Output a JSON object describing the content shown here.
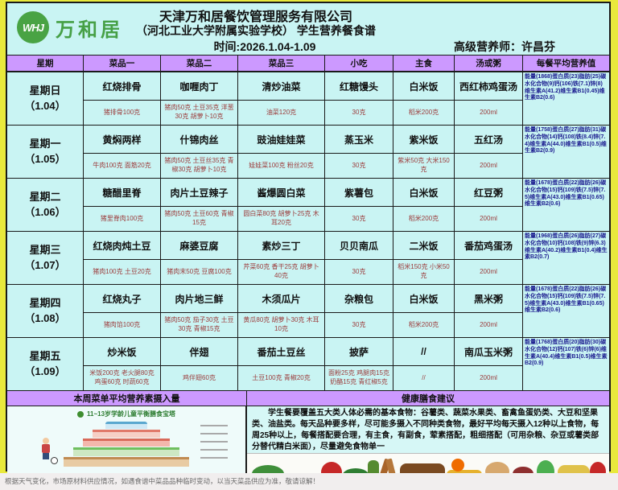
{
  "header": {
    "logo_badge": "WHJ",
    "logo_text": "万和居",
    "company": "天津万和居餐饮管理服务有限公司",
    "subtitle": "（河北工业大学附属实验学校）  学生营养餐食谱",
    "time_label": "时间:2026.1.04-1.09",
    "nutritionist": "高级营养师：许昌芬"
  },
  "table": {
    "columns": [
      "星期",
      "菜品一",
      "菜品二",
      "菜品三",
      "小吃",
      "主食",
      "汤或粥",
      "每餐平均营养值"
    ],
    "rows": [
      {
        "day": "星期日",
        "date": "（1.04）",
        "items": [
          {
            "name": "红烧排骨",
            "detail": "猪排骨100克"
          },
          {
            "name": "咖喱肉丁",
            "detail": "猪肉50克 土豆35克 洋葱30克 胡萝卜10克"
          },
          {
            "name": "清炒油菜",
            "detail": "油菜120克"
          },
          {
            "name": "红糖馒头",
            "detail": "30克"
          },
          {
            "name": "白米饭",
            "detail": "稻米200克"
          },
          {
            "name": "西红柿鸡蛋汤",
            "detail": "200ml"
          }
        ],
        "nutrition": "能量(1868)蛋白质(23)脂肪(25)碳水化合物(9)钙(106)铁(7.1)锌(8)维生素A(41.2)维生素B1(0.45)维生素B2(0.6)"
      },
      {
        "day": "星期一",
        "date": "（1.05）",
        "items": [
          {
            "name": "黄焖两样",
            "detail": "牛肉100克 面筋20克"
          },
          {
            "name": "什锦肉丝",
            "detail": "猪肉50克 土豆丝35克 青椒30克 胡萝卜10克"
          },
          {
            "name": "豉油娃娃菜",
            "detail": "娃娃菜100克 粉丝20克"
          },
          {
            "name": "蒸玉米",
            "detail": "30克"
          },
          {
            "name": "紫米饭",
            "detail": "紫米50克 大米150克"
          },
          {
            "name": "五红汤",
            "detail": "200ml"
          }
        ],
        "nutrition": "能量(1758)蛋白质(27)脂肪(31)碳水化合物(14)钙(108)铁(8.4)锌(7.4)维生素A(44.0)维生素B1(0.5)维生素B2(0.9)"
      },
      {
        "day": "星期二",
        "date": "（1.06）",
        "items": [
          {
            "name": "糖醋里脊",
            "detail": "猪里脊肉100克"
          },
          {
            "name": "肉片土豆辣子",
            "detail": "猪肉50克 土豆60克 青椒15克"
          },
          {
            "name": "酱爆圆白菜",
            "detail": "圆白菜80克 胡萝卜25克 木耳20克"
          },
          {
            "name": "紫薯包",
            "detail": "30克"
          },
          {
            "name": "白米饭",
            "detail": "稻米200克"
          },
          {
            "name": "红豆粥",
            "detail": "200ml"
          }
        ],
        "nutrition": "能量(1678)蛋白质(22)脂肪(26)碳水化合物(15)钙(109)铁(7.5)锌(7.5)维生素A(43.0)维生素B1(0.65)维生素B2(0.6)"
      },
      {
        "day": "星期三",
        "date": "（1.07）",
        "items": [
          {
            "name": "红烧肉炖土豆",
            "detail": "猪肉100克 土豆20克"
          },
          {
            "name": "麻婆豆腐",
            "detail": "猪肉末50克 豆腐100克"
          },
          {
            "name": "素炒三丁",
            "detail": "芹菜60克 香干25克 胡萝卜40克"
          },
          {
            "name": "贝贝南瓜",
            "detail": "30克"
          },
          {
            "name": "二米饭",
            "detail": "稻米150克 小米50克"
          },
          {
            "name": "番茄鸡蛋汤",
            "detail": "200ml"
          }
        ],
        "nutrition": "能量(1968)蛋白质(26)脂肪(27)碳水化合物(10)钙(108)铁(9)锌(6.3)维生素A(40.2)维生素B1(0.4)维生素B2(0.7)"
      },
      {
        "day": "星期四",
        "date": "（1.08）",
        "items": [
          {
            "name": "红烧丸子",
            "detail": "猪肉馅100克"
          },
          {
            "name": "肉片地三鲜",
            "detail": "猪肉50克 茄子30克 土豆30克 青椒15克"
          },
          {
            "name": "木须瓜片",
            "detail": "黄瓜80克 胡萝卜30克 木耳10克"
          },
          {
            "name": "杂粮包",
            "detail": "30克"
          },
          {
            "name": "白米饭",
            "detail": "稻米200克"
          },
          {
            "name": "黑米粥",
            "detail": "200ml"
          }
        ],
        "nutrition": "能量(1678)蛋白质(22)脂肪(26)碳水化合物(15)钙(109)铁(7.5)锌(7.5)维生素A(43.0)维生素B1(0.65)维生素B2(0.6)"
      },
      {
        "day": "星期五",
        "date": "（1.09）",
        "items": [
          {
            "name": "炒米饭",
            "detail": "米饭200克 老火腿80克 鸡蛋60克 时蔬60克"
          },
          {
            "name": "伴翅",
            "detail": "鸡伴翅60克"
          },
          {
            "name": "番茄土豆丝",
            "detail": "土豆100克 青椒20克"
          },
          {
            "name": "披萨",
            "detail": "面粉25克 鸡腿肉15克 奶酪15克 青红椒5克"
          },
          {
            "name": "//",
            "detail": "//"
          },
          {
            "name": "南瓜玉米粥",
            "detail": "200ml"
          }
        ],
        "nutrition": "能量(1768)蛋白质(20)脂肪(30)碳水化合物(12)钙(107)铁(6)锌(6)维生素A(40.4)维生素B1(0.5)维生素B2(0.9)"
      }
    ]
  },
  "bottom": {
    "left_header": "本周菜单平均营养素摄入量",
    "right_header": "健康膳食建议",
    "pagoda_title": "11~13岁学龄儿童平衡膳食宝塔",
    "advice": "学生餐要覆盖五大类人体必需的基本食物：谷薯类、蔬菜水果类、畜禽鱼蛋奶类、大豆和坚果类、油盐类。每天品种要多样，尽可能多摄入不同种类食物，最好平均每天摄入12种以上食物，每周25种以上，每餐搭配要合理，有主食，有副食，荤素搭配，粗细搭配（可用杂粮、杂豆或薯类部分替代精白米面），尽量避免食物单一"
  },
  "footer": {
    "note": "根据天气变化，市场原材料供应情况，如遇食谱中菜品品种临时变动，以当天菜品供应为准，敬请谅解！"
  },
  "colors": {
    "header_purple": "#cc99ff",
    "table_cyan": "#c9f4f3",
    "logo_green": "#46a046",
    "detail_red": "#9c3b3b",
    "nutrition_navy": "#1b1b8f",
    "edge_yellow": "#e9e93c"
  }
}
